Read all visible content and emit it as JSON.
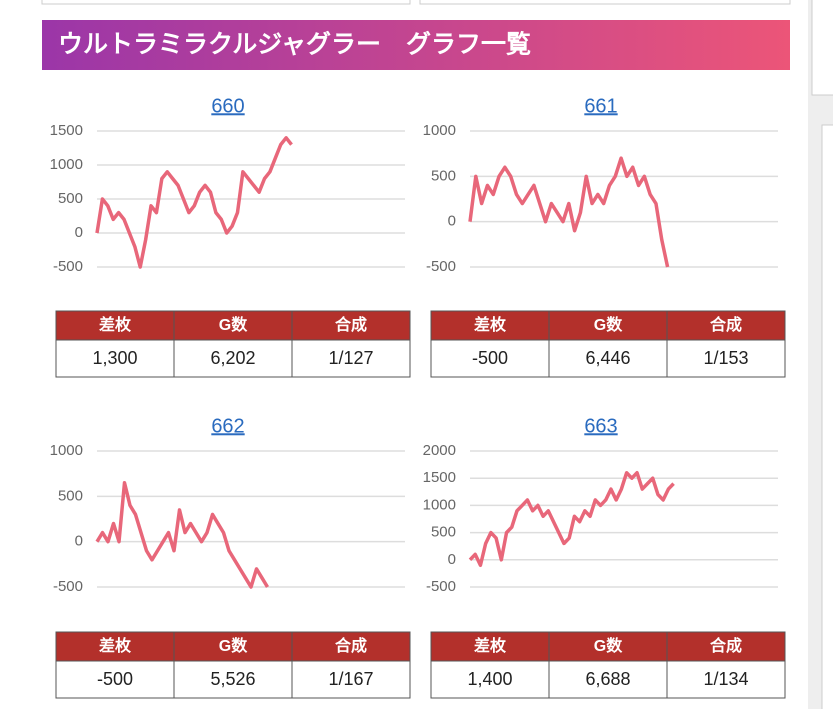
{
  "header": {
    "title": "ウルトラミラクルジャグラー　グラフ一覧"
  },
  "panels": [
    {
      "link": "660",
      "chart": {
        "type": "line",
        "color": "#e8677a",
        "xlim": [
          0,
          57
        ],
        "ylim": [
          -500,
          1500
        ],
        "yticks": [
          -500,
          0,
          500,
          1000,
          1500
        ],
        "grid": true,
        "values": [
          0,
          500,
          400,
          200,
          300,
          200,
          0,
          -200,
          -500,
          -100,
          400,
          300,
          800,
          900,
          800,
          700,
          500,
          300,
          400,
          600,
          700,
          600,
          300,
          200,
          0,
          100,
          300,
          900,
          800,
          700,
          600,
          800,
          900,
          1100,
          1300,
          1400,
          1300
        ]
      },
      "table": {
        "headers": [
          "差枚",
          "G数",
          "合成"
        ],
        "row": [
          "1,300",
          "6,202",
          "1/127"
        ]
      }
    },
    {
      "link": "661",
      "chart": {
        "type": "line",
        "color": "#e8677a",
        "xlim": [
          0,
          53
        ],
        "ylim": [
          -500,
          1000
        ],
        "yticks": [
          -500,
          0,
          500,
          1000
        ],
        "grid": true,
        "values": [
          0,
          500,
          200,
          400,
          300,
          500,
          600,
          500,
          300,
          200,
          300,
          400,
          200,
          0,
          200,
          100,
          0,
          200,
          -100,
          100,
          500,
          200,
          300,
          200,
          400,
          500,
          700,
          500,
          600,
          400,
          500,
          300,
          200,
          -200,
          -500
        ]
      },
      "table": {
        "headers": [
          "差枚",
          "G数",
          "合成"
        ],
        "row": [
          "-500",
          "6,446",
          "1/153"
        ]
      }
    },
    {
      "link": "662",
      "chart": {
        "type": "line",
        "color": "#e8677a",
        "xlim": [
          0,
          56
        ],
        "ylim": [
          -500,
          1000
        ],
        "yticks": [
          -500,
          0,
          500,
          1000
        ],
        "grid": true,
        "values": [
          0,
          100,
          0,
          200,
          0,
          650,
          400,
          300,
          100,
          -100,
          -200,
          -100,
          0,
          100,
          -100,
          350,
          100,
          200,
          100,
          0,
          100,
          300,
          200,
          100,
          -100,
          -200,
          -300,
          -400,
          -500,
          -300,
          -400,
          -500
        ]
      },
      "table": {
        "headers": [
          "差枚",
          "G数",
          "合成"
        ],
        "row": [
          "-500",
          "5,526",
          "1/167"
        ]
      }
    },
    {
      "link": "663",
      "chart": {
        "type": "line",
        "color": "#e8677a",
        "xlim": [
          0,
          59
        ],
        "ylim": [
          -500,
          2000
        ],
        "yticks": [
          -500,
          0,
          500,
          1000,
          1500,
          2000
        ],
        "grid": true,
        "values": [
          0,
          100,
          -100,
          300,
          500,
          400,
          0,
          500,
          600,
          900,
          1000,
          1100,
          900,
          1000,
          800,
          900,
          700,
          500,
          300,
          400,
          800,
          700,
          900,
          800,
          1100,
          1000,
          1100,
          1300,
          1100,
          1300,
          1600,
          1500,
          1600,
          1300,
          1400,
          1500,
          1200,
          1100,
          1300,
          1400
        ]
      },
      "table": {
        "headers": [
          "差枚",
          "G数",
          "合成"
        ],
        "row": [
          "1,400",
          "6,688",
          "1/134"
        ]
      }
    }
  ]
}
